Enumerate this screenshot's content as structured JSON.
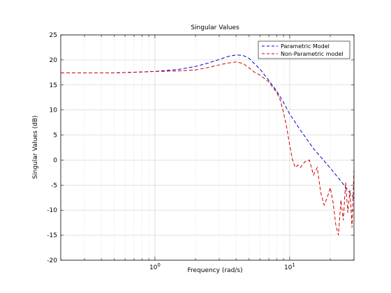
{
  "chart_data": {
    "type": "line",
    "title": "Singular Values",
    "xlabel": "Frequency (rad/s)",
    "ylabel": "Singular Values (dB)",
    "xscale": "log",
    "xlim": [
      0.2,
      30
    ],
    "ylim": [
      -20,
      25
    ],
    "yticks": [
      25,
      20,
      15,
      10,
      5,
      0,
      -5,
      -10,
      -15,
      -20
    ],
    "xticks": [
      {
        "value": 1,
        "base": "10",
        "exp": "0"
      },
      {
        "value": 10,
        "base": "10",
        "exp": "1"
      }
    ],
    "grid": true,
    "legend_position": "top-right",
    "series": [
      {
        "name": "Parametric Model",
        "color": "#0000cc",
        "style": "dashed",
        "x": [
          0.2,
          0.3,
          0.5,
          0.8,
          1.0,
          1.5,
          2.0,
          2.5,
          3.0,
          3.5,
          4.0,
          4.5,
          5.0,
          6.0,
          7.0,
          8.0,
          9.0,
          10.0,
          12.0,
          15.0,
          20.0,
          25.0,
          30.0
        ],
        "y": [
          17.4,
          17.4,
          17.4,
          17.6,
          17.7,
          18.1,
          18.7,
          19.4,
          20.1,
          20.7,
          21.0,
          20.9,
          20.3,
          18.2,
          15.9,
          13.8,
          11.5,
          9.2,
          6.0,
          2.3,
          -1.6,
          -4.8,
          -7.6
        ]
      },
      {
        "name": "Non-Parametric model",
        "color": "#cc0000",
        "style": "dashed",
        "x": [
          0.2,
          0.3,
          0.5,
          0.8,
          1.0,
          1.5,
          2.0,
          2.5,
          3.0,
          3.5,
          4.0,
          4.5,
          5.0,
          5.5,
          6.0,
          7.0,
          8.0,
          8.5,
          9.0,
          9.5,
          10.0,
          10.5,
          11.0,
          11.5,
          12.0,
          13.0,
          14.0,
          15.0,
          16.0,
          17.0,
          18.0,
          19.0,
          20.0,
          21.0,
          22.0,
          23.0,
          24.0,
          25.0,
          26.0,
          27.0,
          28.0,
          29.0,
          30.0
        ],
        "y": [
          17.4,
          17.4,
          17.4,
          17.6,
          17.7,
          17.8,
          18.0,
          18.5,
          19.0,
          19.4,
          19.6,
          19.3,
          18.4,
          17.5,
          17.0,
          15.6,
          13.5,
          12.0,
          9.5,
          6.5,
          3.0,
          0.0,
          -1.5,
          -1.0,
          -1.5,
          -0.3,
          0.0,
          -3.0,
          -1.5,
          -6.5,
          -9.0,
          -7.5,
          -5.5,
          -8.5,
          -13.0,
          -15.0,
          -8.0,
          -12.0,
          -4.5,
          -10.5,
          -6.0,
          -13.5,
          -2.0
        ]
      }
    ]
  }
}
